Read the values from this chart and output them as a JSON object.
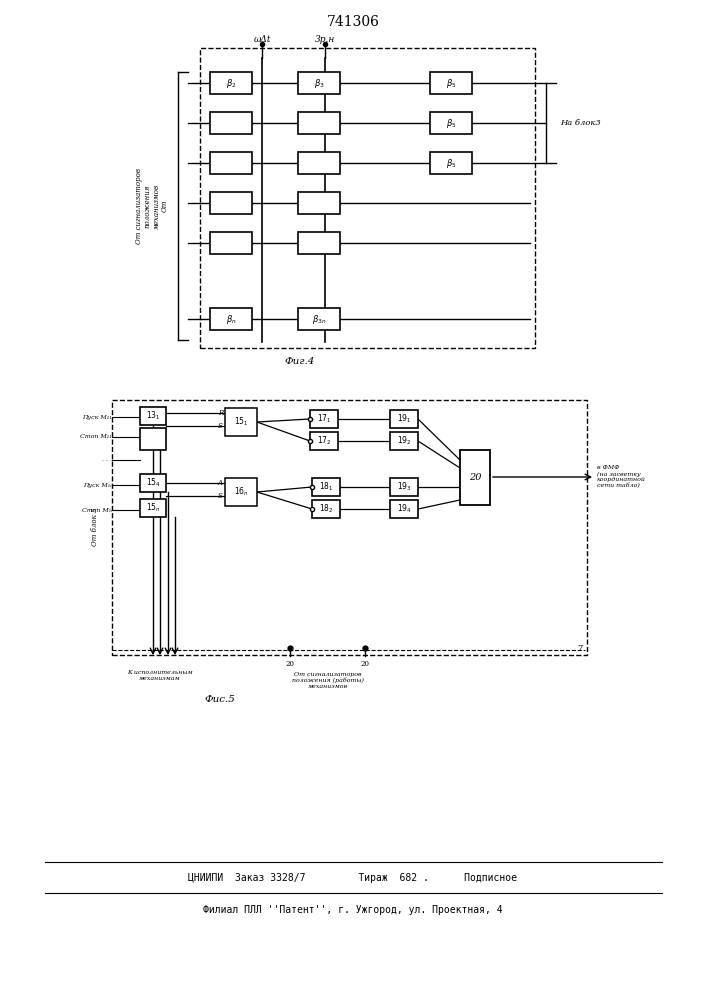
{
  "title": "741306",
  "bg_color": "#ffffff",
  "fig4_caption": "Фиг.4",
  "fig5_caption": "Фис.5",
  "footer_line1": "ЦНИИПИ  Заказ 3328/7         Тираж  682 .      Подписное",
  "footer_line2": "Филиал ПЛЛ ''Патент'', г. Ужгород, ул. Проектная, 4"
}
